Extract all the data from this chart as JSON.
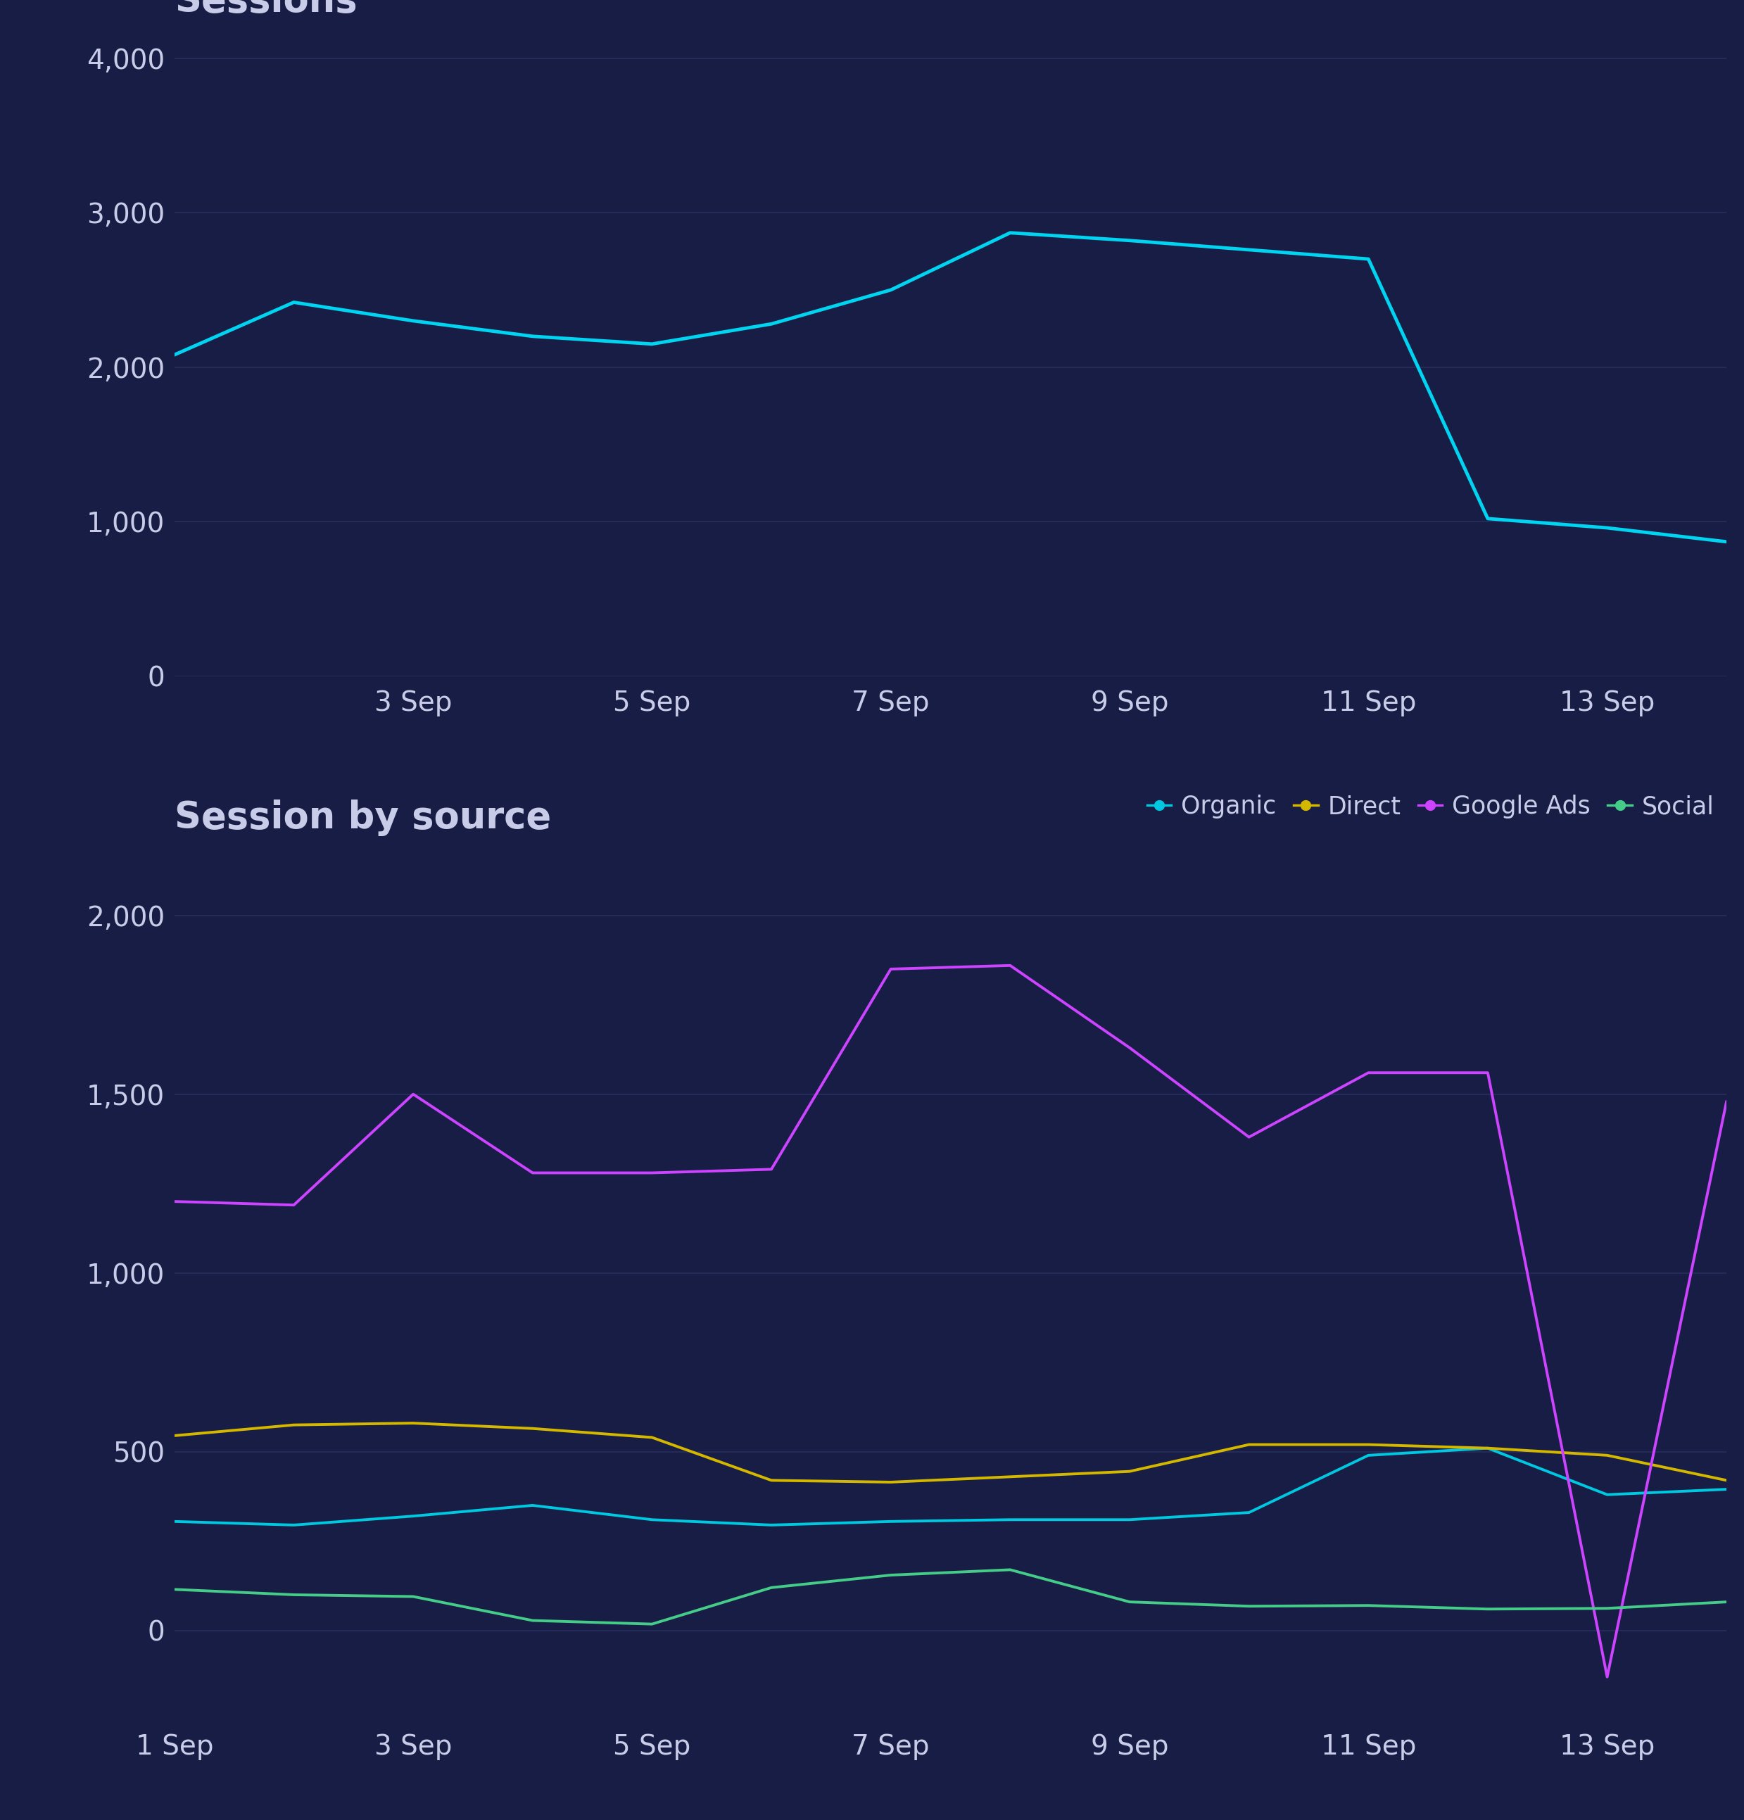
{
  "bg_color": "#181d45",
  "text_color": "#c8cce8",
  "grid_color": "#2a305e",
  "title1": "Sessions",
  "title2": "Session by source",
  "sessions_x": [
    1,
    2,
    3,
    4,
    5,
    6,
    7,
    8,
    9,
    10,
    11,
    12,
    13,
    14
  ],
  "sessions_y": [
    2080,
    2420,
    2300,
    2200,
    2150,
    2280,
    2500,
    2870,
    2820,
    2760,
    2700,
    1020,
    960,
    870
  ],
  "sessions_color": "#00d4f0",
  "x_labels_top": [
    "3 Sep",
    "5 Sep",
    "7 Sep",
    "9 Sep",
    "11 Sep",
    "13 Sep"
  ],
  "x_ticks_top": [
    3,
    5,
    7,
    9,
    11,
    13
  ],
  "x_labels_bot": [
    "1 Sep",
    "3 Sep",
    "5 Sep",
    "7 Sep",
    "9 Sep",
    "11 Sep",
    "13 Sep"
  ],
  "x_ticks_bot": [
    1,
    3,
    5,
    7,
    9,
    11,
    13
  ],
  "organic_x": [
    1,
    2,
    3,
    4,
    5,
    6,
    7,
    8,
    9,
    10,
    11,
    12,
    13,
    14
  ],
  "organic_y": [
    305,
    295,
    320,
    350,
    310,
    295,
    305,
    310,
    310,
    330,
    490,
    510,
    380,
    395
  ],
  "organic_color": "#00c8e0",
  "direct_x": [
    1,
    2,
    3,
    4,
    5,
    6,
    7,
    8,
    9,
    10,
    11,
    12,
    13,
    14
  ],
  "direct_y": [
    545,
    575,
    580,
    565,
    540,
    420,
    415,
    430,
    445,
    520,
    520,
    510,
    490,
    420
  ],
  "direct_color": "#d4b800",
  "google_x": [
    1,
    2,
    3,
    4,
    5,
    6,
    7,
    8,
    9,
    10,
    11,
    12,
    13,
    14
  ],
  "google_y": [
    1200,
    1190,
    1500,
    1280,
    1280,
    1290,
    1850,
    1860,
    1630,
    1380,
    1560,
    1560,
    -130,
    1480
  ],
  "google_color": "#cc44ff",
  "social_x": [
    1,
    2,
    3,
    4,
    5,
    6,
    7,
    8,
    9,
    10,
    11,
    12,
    13,
    14
  ],
  "social_y": [
    115,
    100,
    95,
    28,
    18,
    120,
    155,
    170,
    80,
    68,
    70,
    60,
    62,
    80
  ],
  "social_color": "#44cc88",
  "legend_labels": [
    "Organic",
    "Direct",
    "Google Ads",
    "Social"
  ],
  "legend_colors": [
    "#00c8e0",
    "#d4b800",
    "#cc44ff",
    "#44cc88"
  ],
  "ylim1": [
    0,
    4200
  ],
  "yticks1": [
    0,
    1000,
    2000,
    3000,
    4000
  ],
  "ylim2": [
    -250,
    2200
  ],
  "yticks2": [
    0,
    500,
    1000,
    1500,
    2000
  ],
  "title_fontsize": 38,
  "tick_fontsize": 28,
  "legend_fontsize": 25,
  "linewidth1": 3.5,
  "linewidth2": 2.8
}
